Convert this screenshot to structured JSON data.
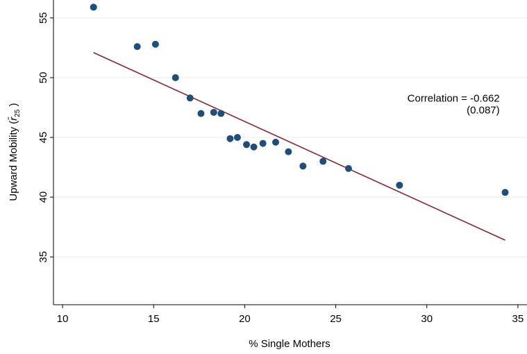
{
  "chart_data": {
    "type": "scatter",
    "xlabel": "% Single Mothers",
    "ylabel_prefix": "Upward Mobility (",
    "ylabel_symbol": "r̄",
    "ylabel_subscript": "25",
    "ylabel_suffix": " )",
    "xlim": [
      9.5,
      35.5
    ],
    "ylim": [
      31,
      56.5
    ],
    "xticks": [
      10,
      15,
      20,
      25,
      30,
      35
    ],
    "xtick_labels": [
      "10",
      "15",
      "20",
      "25",
      "30",
      "35"
    ],
    "yticks": [
      35,
      40,
      45,
      50,
      55
    ],
    "ytick_labels": [
      "35",
      "40",
      "45",
      "50",
      "55"
    ],
    "grid": "horizontal",
    "colors": {
      "points": "#1f4e79",
      "fit_line": "#8b2332",
      "grid": "#e6ecef"
    },
    "points": [
      {
        "x": 11.7,
        "y": 55.9
      },
      {
        "x": 14.1,
        "y": 52.6
      },
      {
        "x": 15.1,
        "y": 52.8
      },
      {
        "x": 16.2,
        "y": 50.0
      },
      {
        "x": 17.0,
        "y": 48.3
      },
      {
        "x": 17.6,
        "y": 47.0
      },
      {
        "x": 18.3,
        "y": 47.1
      },
      {
        "x": 18.7,
        "y": 47.0
      },
      {
        "x": 19.2,
        "y": 44.9
      },
      {
        "x": 19.6,
        "y": 45.0
      },
      {
        "x": 20.1,
        "y": 44.4
      },
      {
        "x": 20.5,
        "y": 44.2
      },
      {
        "x": 21.0,
        "y": 44.5
      },
      {
        "x": 21.7,
        "y": 44.6
      },
      {
        "x": 22.4,
        "y": 43.8
      },
      {
        "x": 23.2,
        "y": 42.6
      },
      {
        "x": 24.3,
        "y": 43.0
      },
      {
        "x": 25.7,
        "y": 42.4
      },
      {
        "x": 28.5,
        "y": 41.0
      },
      {
        "x": 34.3,
        "y": 40.4
      }
    ],
    "fit_line": {
      "x": [
        11.7,
        34.3
      ],
      "y": [
        52.1,
        36.4
      ]
    },
    "annotation": {
      "line1": "Correlation = -0.662",
      "line2": "(0.087)",
      "x": 34.0,
      "y": 48.0
    }
  }
}
